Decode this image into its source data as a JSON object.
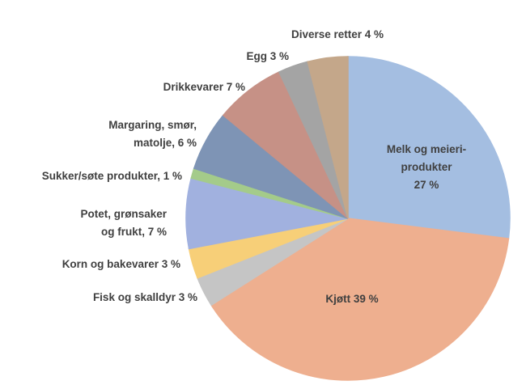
{
  "chart_data": {
    "type": "pie",
    "values": [
      27,
      39,
      3,
      3,
      7,
      1,
      6,
      7,
      3,
      4
    ],
    "value_labels": [
      "Melk og meieri-\nprodukter\n27 %",
      "Kjøtt 39 %",
      "Fisk og skalldyr  3 %",
      "Korn og bakevarer 3 %",
      "Potet, grønsaker\nog frukt, 7 %",
      "Sukker/søte produkter, 1 %",
      "Margaring, smør,\nmatolje, 6 %",
      "Drikkevarer 7 %",
      "Egg 3 %",
      "Diverse retter 4 %"
    ],
    "colors": [
      "#a9c4e8",
      "#f5b493",
      "#cbcbcb",
      "#ffd57c",
      "#a6b6e6",
      "#a9d18e",
      "#8299bb",
      "#cc958a",
      "#a9a9a9",
      "#caac8e"
    ]
  }
}
